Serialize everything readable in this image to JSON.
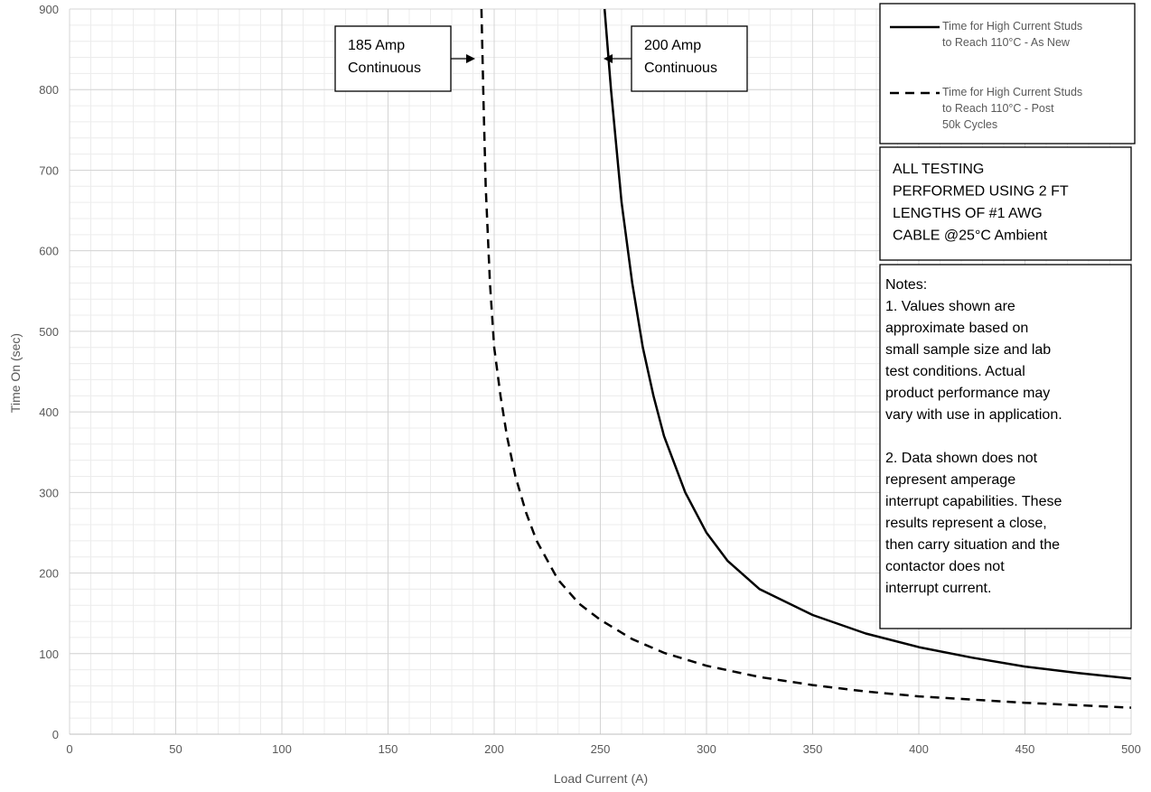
{
  "chart_data": {
    "type": "line",
    "xlabel": "Load Current (A)",
    "ylabel": "Time On (sec)",
    "xlim": [
      0,
      500
    ],
    "ylim": [
      0,
      900
    ],
    "x_ticks": [
      0,
      50,
      100,
      150,
      200,
      250,
      300,
      350,
      400,
      450,
      500
    ],
    "y_ticks": [
      0,
      100,
      200,
      300,
      400,
      500,
      600,
      700,
      800,
      900
    ],
    "grid": true,
    "legend_position": "top-right",
    "series": [
      {
        "name": "Time for High Current Studs to Reach 110°C - As New",
        "style": "solid",
        "color": "#000000",
        "x": [
          252,
          255,
          260,
          265,
          270,
          275,
          280,
          290,
          300,
          310,
          325,
          350,
          375,
          400,
          425,
          450,
          475,
          500
        ],
        "y": [
          900,
          800,
          660,
          560,
          480,
          420,
          370,
          300,
          250,
          215,
          180,
          148,
          125,
          108,
          95,
          84,
          76,
          69
        ]
      },
      {
        "name": "Time for High Current Studs to Reach 110°C - Post 50k Cycles",
        "style": "dashed",
        "color": "#000000",
        "x": [
          194,
          195,
          196,
          198,
          200,
          203,
          206,
          210,
          215,
          220,
          230,
          240,
          250,
          265,
          280,
          300,
          325,
          350,
          375,
          400,
          450,
          500
        ],
        "y": [
          900,
          780,
          680,
          560,
          480,
          420,
          370,
          320,
          275,
          240,
          192,
          162,
          142,
          118,
          101,
          85,
          71,
          61,
          53,
          47,
          39,
          33
        ]
      }
    ],
    "annotations": [
      {
        "lines": [
          "185 Amp",
          "Continuous"
        ]
      },
      {
        "lines": [
          "200 Amp",
          "Continuous"
        ]
      }
    ],
    "info_box": {
      "lines": [
        "ALL TESTING",
        "PERFORMED USING 2 FT",
        "LENGTHS OF #1 AWG",
        "CABLE @25°C Ambient"
      ]
    },
    "notes_box": {
      "lines": [
        "Notes:",
        "1. Values shown are",
        "approximate based on",
        "small sample size and lab",
        "test conditions.  Actual",
        "product performance may",
        "vary with use in application.",
        "",
        "2. Data shown does not",
        "represent amperage",
        "interrupt capabilities. These",
        "results represent a close,",
        "then carry situation and the",
        "contactor does not",
        "interrupt current."
      ]
    }
  }
}
